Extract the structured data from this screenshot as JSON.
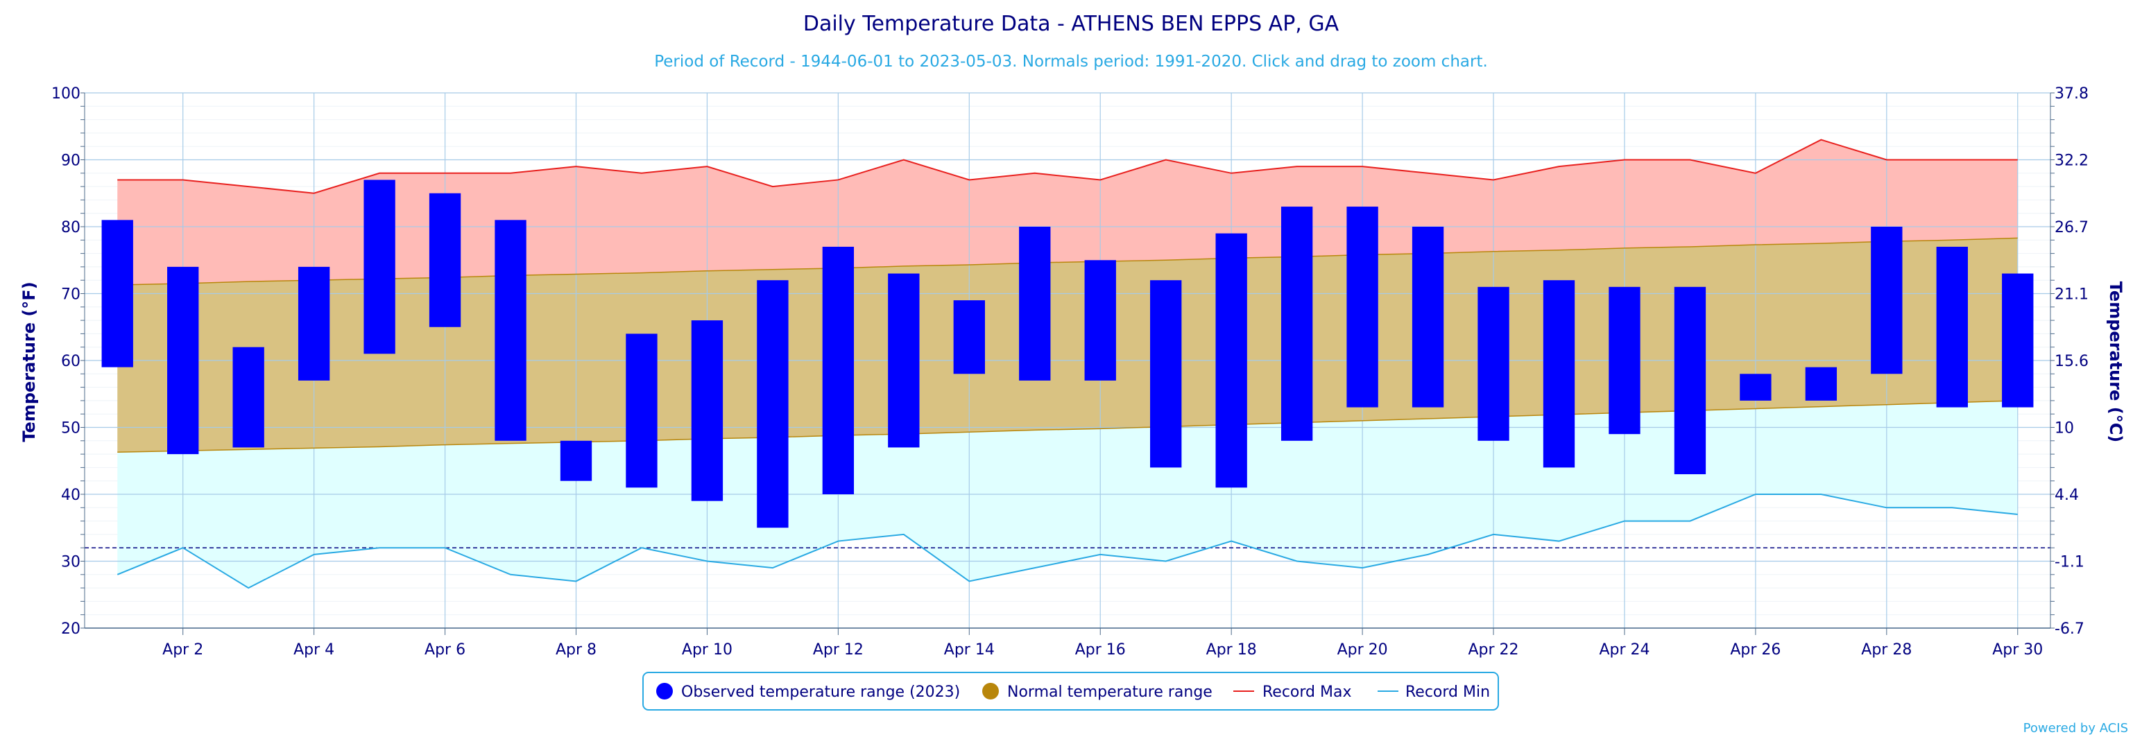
{
  "chart_data": {
    "type": "bar",
    "title": "Daily Temperature Data - ATHENS BEN EPPS AP, GA",
    "subtitle": "Period of Record - 1944-06-01 to 2023-05-03. Normals period: 1991-2020. Click and drag to zoom chart.",
    "ylabel": "Temperature (°F)",
    "y2label": "Temperature (°C)",
    "ylim": [
      20,
      100
    ],
    "yticks": [
      "20",
      "30",
      "40",
      "50",
      "60",
      "70",
      "80",
      "90",
      "100"
    ],
    "y2ticks": [
      "-6.7",
      "-1.1",
      "4.4",
      "10",
      "15.6",
      "21.1",
      "26.7",
      "32.2",
      "37.8"
    ],
    "freezing_line": 32,
    "x": [
      1,
      2,
      3,
      4,
      5,
      6,
      7,
      8,
      9,
      10,
      11,
      12,
      13,
      14,
      15,
      16,
      17,
      18,
      19,
      20,
      21,
      22,
      23,
      24,
      25,
      26,
      27,
      28,
      29,
      30
    ],
    "xticks": [
      "Apr 2",
      "Apr 4",
      "Apr 6",
      "Apr 8",
      "Apr 10",
      "Apr 12",
      "Apr 14",
      "Apr 16",
      "Apr 18",
      "Apr 20",
      "Apr 22",
      "Apr 24",
      "Apr 26",
      "Apr 28",
      "Apr 30"
    ],
    "grid": true,
    "legend_position": "bottom-center",
    "series": [
      {
        "name": "Observed temperature range (2023)",
        "color": "#0000ff",
        "low": [
          59,
          46,
          47,
          57,
          61,
          65,
          48,
          42,
          41,
          39,
          35,
          40,
          47,
          58,
          57,
          57,
          44,
          41,
          48,
          53,
          53,
          48,
          44,
          49,
          43,
          54,
          54,
          58,
          53,
          53
        ],
        "high": [
          81,
          74,
          62,
          74,
          87,
          85,
          81,
          48,
          64,
          66,
          72,
          77,
          73,
          69,
          80,
          75,
          72,
          79,
          83,
          83,
          80,
          71,
          72,
          71,
          71,
          58,
          59,
          80,
          77,
          73
        ]
      },
      {
        "name": "Normal temperature range",
        "color": "#b8860b",
        "low": [
          46.3,
          46.5,
          46.7,
          46.9,
          47.1,
          47.4,
          47.6,
          47.8,
          48.0,
          48.3,
          48.5,
          48.8,
          49.0,
          49.3,
          49.6,
          49.8,
          50.1,
          50.4,
          50.7,
          51.0,
          51.3,
          51.6,
          51.9,
          52.2,
          52.5,
          52.8,
          53.1,
          53.4,
          53.7,
          54.0
        ],
        "high": [
          71.3,
          71.5,
          71.8,
          72.0,
          72.2,
          72.4,
          72.7,
          72.9,
          73.1,
          73.4,
          73.6,
          73.8,
          74.1,
          74.3,
          74.6,
          74.8,
          75.0,
          75.3,
          75.5,
          75.8,
          76.0,
          76.3,
          76.5,
          76.8,
          77.0,
          77.3,
          77.5,
          77.8,
          78.0,
          78.3
        ]
      },
      {
        "name": "Record Max",
        "color": "#e8201e",
        "values": [
          87,
          87,
          86,
          85,
          88,
          88,
          88,
          89,
          88,
          89,
          86,
          87,
          90,
          87,
          88,
          87,
          90,
          88,
          89,
          89,
          88,
          87,
          89,
          90,
          90,
          88,
          93,
          90,
          90,
          90
        ]
      },
      {
        "name": "Record Min",
        "color": "#29a9e3",
        "values": [
          28,
          32,
          26,
          31,
          32,
          32,
          28,
          27,
          32,
          30,
          29,
          33,
          34,
          27,
          29,
          31,
          30,
          33,
          30,
          29,
          31,
          34,
          33,
          36,
          36,
          40,
          40,
          38,
          38,
          37
        ]
      }
    ],
    "credits": "Powered by ACIS"
  }
}
